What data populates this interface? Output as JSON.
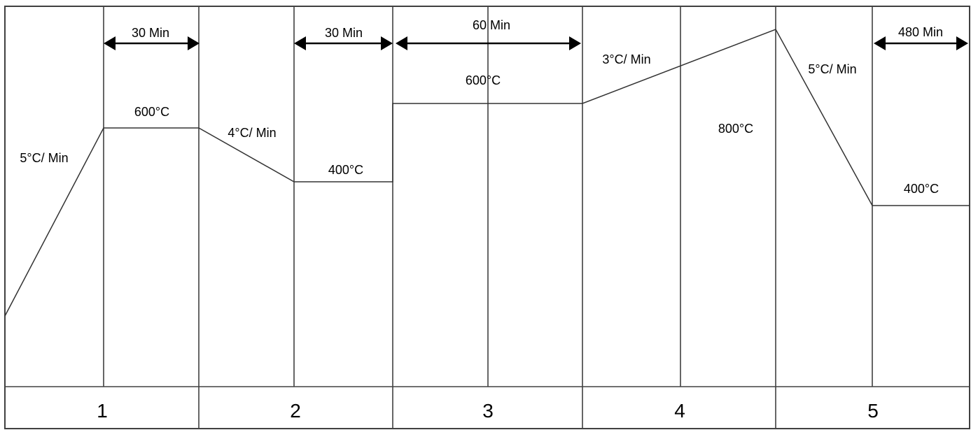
{
  "stages": [
    "1",
    "2",
    "3",
    "4",
    "5"
  ],
  "durations": [
    "30 Min",
    "30 Min",
    "60 Min",
    "480 Min"
  ],
  "rates": [
    "5°C/ Min",
    "4°C/ Min",
    "3°C/ Min",
    "5°C/ Min"
  ],
  "temperatures": [
    "600°C",
    "400°C",
    "600°C",
    "800°C",
    "400°C"
  ]
}
